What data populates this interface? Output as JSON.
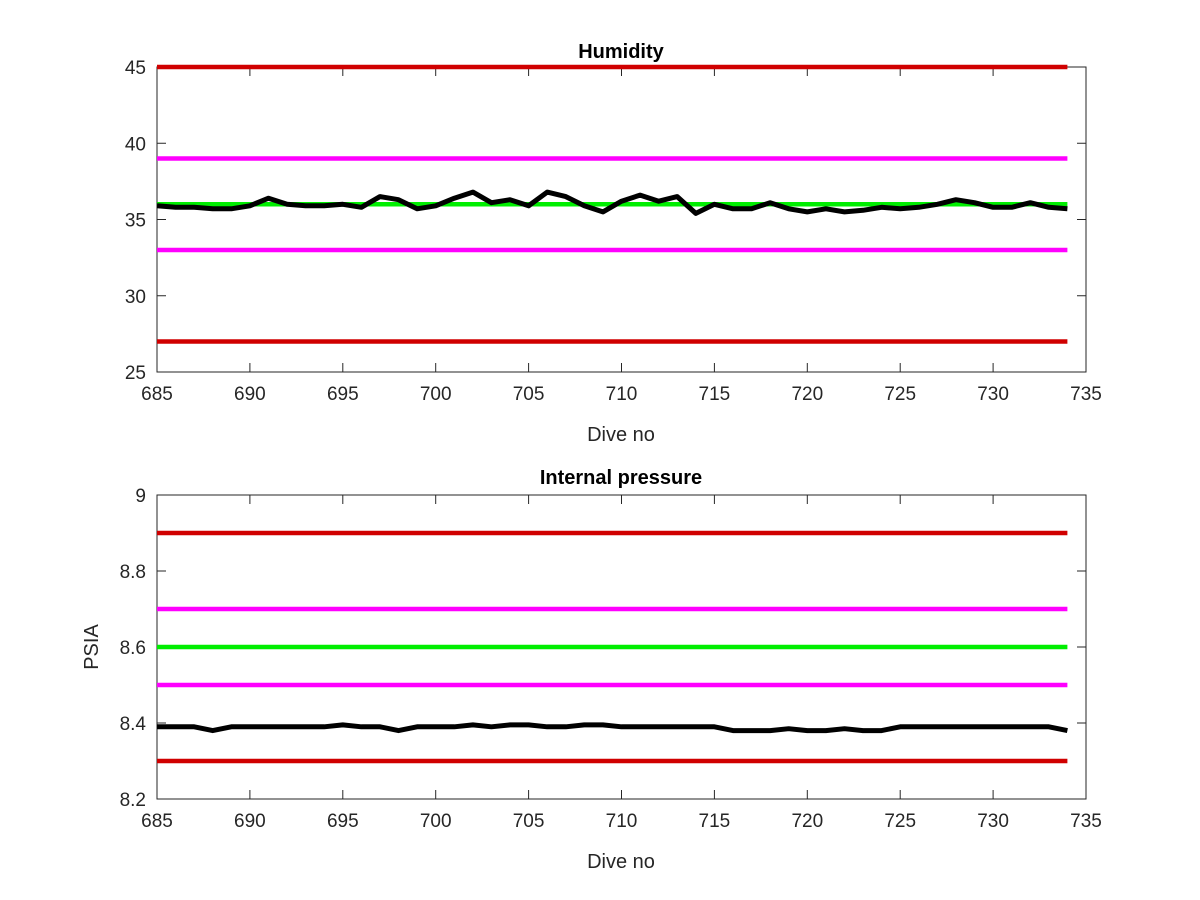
{
  "chart_data": [
    {
      "type": "line",
      "title": "Humidity",
      "xlabel": "Dive no",
      "ylabel": "",
      "xlim": [
        685,
        735
      ],
      "ylim": [
        25,
        45
      ],
      "xticks": [
        685,
        690,
        695,
        700,
        705,
        710,
        715,
        720,
        725,
        730,
        735
      ],
      "yticks": [
        25,
        30,
        35,
        40,
        45
      ],
      "grid": false,
      "series": [
        {
          "color": "#d00000",
          "role": "upper limit",
          "x": [
            685,
            734
          ],
          "y": [
            45,
            45
          ]
        },
        {
          "color": "#ff00ff",
          "role": "upper warning",
          "x": [
            685,
            734
          ],
          "y": [
            39,
            39
          ]
        },
        {
          "color": "#00ee00",
          "role": "nominal",
          "x": [
            685,
            734
          ],
          "y": [
            36,
            36
          ]
        },
        {
          "color": "#ff00ff",
          "role": "lower warning",
          "x": [
            685,
            734
          ],
          "y": [
            33,
            33
          ]
        },
        {
          "color": "#d00000",
          "role": "lower limit",
          "x": [
            685,
            734
          ],
          "y": [
            27,
            27
          ]
        },
        {
          "color": "#000000",
          "role": "measured",
          "x": [
            685,
            686,
            687,
            688,
            689,
            690,
            691,
            692,
            693,
            694,
            695,
            696,
            697,
            698,
            699,
            700,
            701,
            702,
            703,
            704,
            705,
            706,
            707,
            708,
            709,
            710,
            711,
            712,
            713,
            714,
            715,
            716,
            717,
            718,
            719,
            720,
            721,
            722,
            723,
            724,
            725,
            726,
            727,
            728,
            729,
            730,
            731,
            732,
            733,
            734
          ],
          "y": [
            35.9,
            35.8,
            35.8,
            35.7,
            35.7,
            35.9,
            36.4,
            36.0,
            35.9,
            35.9,
            36.0,
            35.8,
            36.5,
            36.3,
            35.7,
            35.9,
            36.4,
            36.8,
            36.1,
            36.3,
            35.9,
            36.8,
            36.5,
            35.9,
            35.5,
            36.2,
            36.6,
            36.2,
            36.5,
            35.4,
            36.0,
            35.7,
            35.7,
            36.1,
            35.7,
            35.5,
            35.7,
            35.5,
            35.6,
            35.8,
            35.7,
            35.8,
            36.0,
            36.3,
            36.1,
            35.8,
            35.8,
            36.1,
            35.8,
            35.7
          ]
        }
      ]
    },
    {
      "type": "line",
      "title": "Internal pressure",
      "xlabel": "Dive no",
      "ylabel": "PSIA",
      "xlim": [
        685,
        735
      ],
      "ylim": [
        8.2,
        9
      ],
      "xticks": [
        685,
        690,
        695,
        700,
        705,
        710,
        715,
        720,
        725,
        730,
        735
      ],
      "yticks": [
        8.2,
        8.4,
        8.6,
        8.8,
        9
      ],
      "yticklabels": [
        "8.2",
        "8.4",
        "8.6",
        "8.8",
        "9"
      ],
      "grid": false,
      "series": [
        {
          "color": "#d00000",
          "role": "upper limit",
          "x": [
            685,
            734
          ],
          "y": [
            8.9,
            8.9
          ]
        },
        {
          "color": "#ff00ff",
          "role": "upper warning",
          "x": [
            685,
            734
          ],
          "y": [
            8.7,
            8.7
          ]
        },
        {
          "color": "#00ee00",
          "role": "nominal",
          "x": [
            685,
            734
          ],
          "y": [
            8.6,
            8.6
          ]
        },
        {
          "color": "#ff00ff",
          "role": "lower warning",
          "x": [
            685,
            734
          ],
          "y": [
            8.5,
            8.5
          ]
        },
        {
          "color": "#d00000",
          "role": "lower limit",
          "x": [
            685,
            734
          ],
          "y": [
            8.3,
            8.3
          ]
        },
        {
          "color": "#000000",
          "role": "measured",
          "x": [
            685,
            686,
            687,
            688,
            689,
            690,
            691,
            692,
            693,
            694,
            695,
            696,
            697,
            698,
            699,
            700,
            701,
            702,
            703,
            704,
            705,
            706,
            707,
            708,
            709,
            710,
            711,
            712,
            713,
            714,
            715,
            716,
            717,
            718,
            719,
            720,
            721,
            722,
            723,
            724,
            725,
            726,
            727,
            728,
            729,
            730,
            731,
            732,
            733,
            734
          ],
          "y": [
            8.39,
            8.39,
            8.39,
            8.38,
            8.39,
            8.39,
            8.39,
            8.39,
            8.39,
            8.39,
            8.395,
            8.39,
            8.39,
            8.38,
            8.39,
            8.39,
            8.39,
            8.395,
            8.39,
            8.395,
            8.395,
            8.39,
            8.39,
            8.395,
            8.395,
            8.39,
            8.39,
            8.39,
            8.39,
            8.39,
            8.39,
            8.38,
            8.38,
            8.38,
            8.385,
            8.38,
            8.38,
            8.385,
            8.38,
            8.38,
            8.39,
            8.39,
            8.39,
            8.39,
            8.39,
            8.39,
            8.39,
            8.39,
            8.39,
            8.38
          ]
        }
      ]
    }
  ]
}
